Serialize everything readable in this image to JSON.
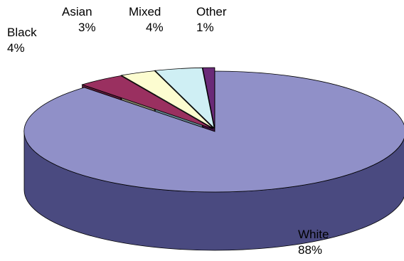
{
  "chart_data": {
    "type": "pie",
    "title": "",
    "legend": "none",
    "slices": [
      {
        "category": "White",
        "value": 88,
        "label": "88%",
        "color": "#9090c8",
        "side_color": "#4a4a80"
      },
      {
        "category": "Black",
        "value": 4,
        "label": "4%",
        "color": "#9a3060",
        "side_color": "#581a38"
      },
      {
        "category": "Asian",
        "value": 3,
        "label": "3%",
        "color": "#fcfcd0",
        "side_color": "#7e7e68"
      },
      {
        "category": "Mixed",
        "value": 4,
        "label": "4%",
        "color": "#cfeff4",
        "side_color": "#62808a"
      },
      {
        "category": "Other",
        "value": 1,
        "label": "1%",
        "color": "#6a2a78",
        "side_color": "#3a1040"
      }
    ]
  }
}
